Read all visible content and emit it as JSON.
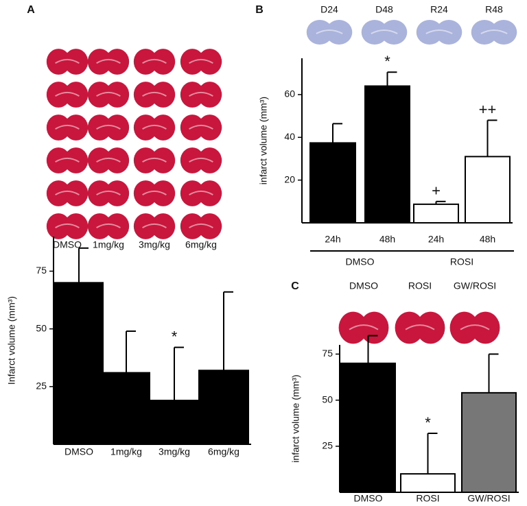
{
  "chart_data": [
    {
      "type": "bar",
      "panel": "A",
      "image_labels": [
        "DMSO",
        "1mg/kg",
        "3mg/kg",
        "6mg/kg"
      ],
      "y_label": "Infarct volume (mm³)",
      "categories": [
        "DMSO",
        "1mg/kg",
        "3mg/kg",
        "6mg/kg"
      ],
      "values": [
        70,
        31,
        19,
        32
      ],
      "errors": [
        15,
        18,
        23,
        34
      ],
      "colors": [
        "#000000",
        "#000000",
        "#000000",
        "#000000"
      ],
      "markers": [
        null,
        null,
        "*",
        null
      ],
      "ylim": [
        0,
        90
      ],
      "yticks": [
        25,
        50,
        75
      ]
    },
    {
      "type": "bar",
      "panel": "B",
      "image_labels": [
        "D24",
        "D48",
        "R24",
        "R48"
      ],
      "y_label": "infarct volume (mm³)",
      "categories": [
        "24h",
        "48h",
        "24h",
        "48h"
      ],
      "groups": [
        "DMSO",
        "ROSI"
      ],
      "values": [
        37.4,
        64,
        8.7,
        31
      ],
      "errors": [
        9,
        6.5,
        1.3,
        17
      ],
      "colors": [
        "#000000",
        "#000000",
        "#ffffff",
        "#ffffff"
      ],
      "markers": [
        null,
        "*",
        "+",
        "++"
      ],
      "ylim": [
        0,
        77
      ],
      "yticks": [
        20,
        40,
        60
      ]
    },
    {
      "type": "bar",
      "panel": "C",
      "image_labels": [
        "DMSO",
        "ROSI",
        "GW/ROSI"
      ],
      "y_label": "infarct volume (mm³)",
      "categories": [
        "DMSO",
        "ROSI",
        "GW/ROSI"
      ],
      "values": [
        70,
        10,
        54
      ],
      "errors": [
        15,
        22,
        21
      ],
      "colors": [
        "#000000",
        "#ffffff",
        "#777777"
      ],
      "markers": [
        null,
        "*",
        null
      ],
      "ylim": [
        0,
        80
      ],
      "yticks": [
        25,
        50,
        75
      ]
    }
  ]
}
